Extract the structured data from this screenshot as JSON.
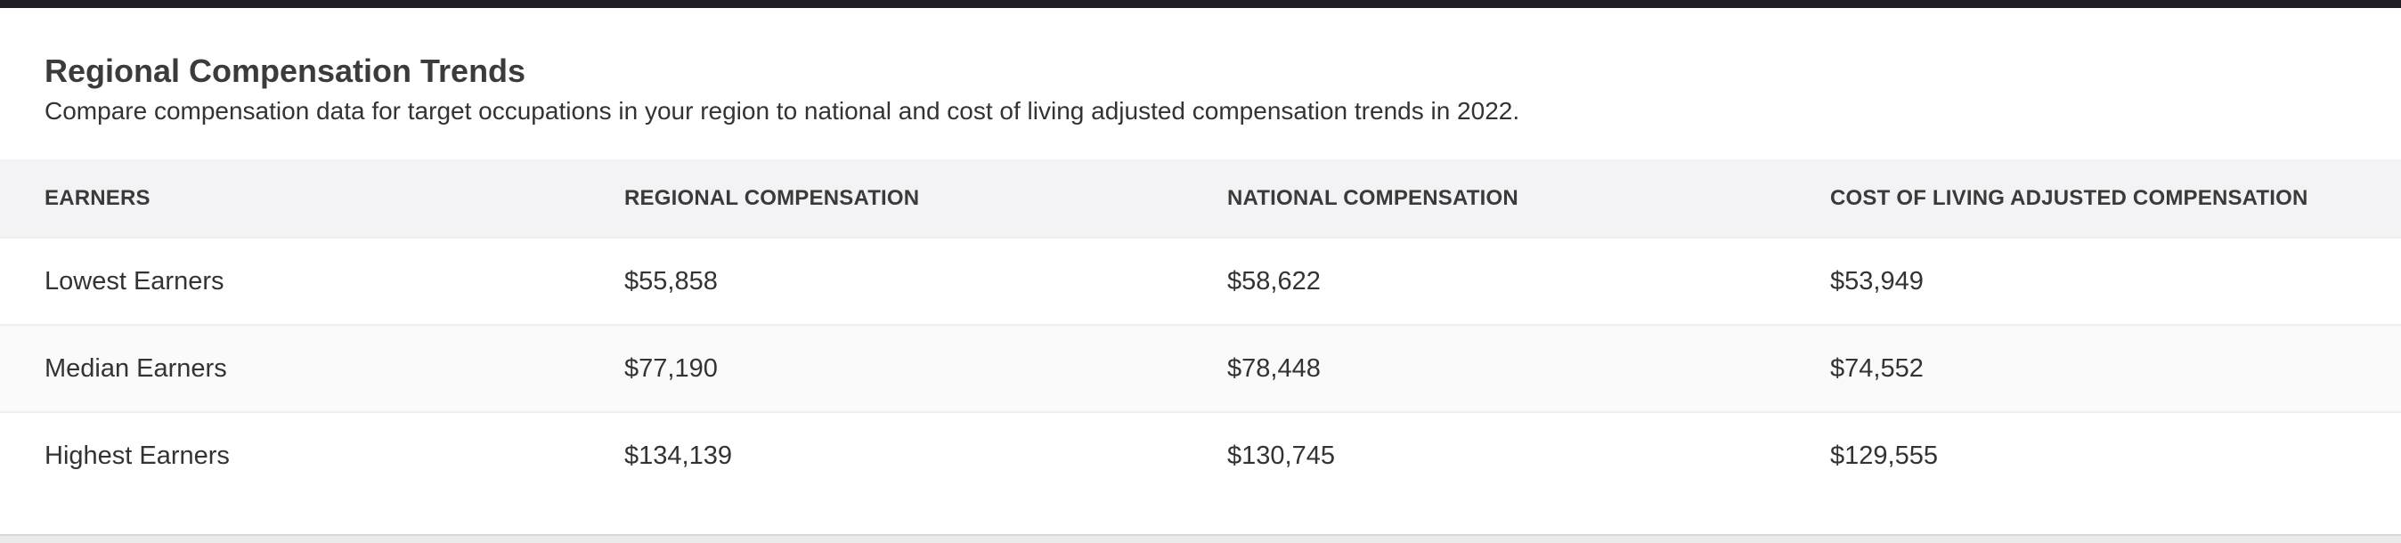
{
  "section": {
    "title": "Regional Compensation Trends",
    "subtitle": "Compare compensation data for target occupations in your region to national and cost of living adjusted compensation trends in 2022."
  },
  "table": {
    "headers": [
      "EARNERS",
      "REGIONAL COMPENSATION",
      "NATIONAL COMPENSATION",
      "COST OF LIVING ADJUSTED COMPENSATION"
    ],
    "rows": [
      [
        "Lowest Earners",
        "$55,858",
        "$58,622",
        "$53,949"
      ],
      [
        "Median Earners",
        "$77,190",
        "$78,448",
        "$74,552"
      ],
      [
        "Highest Earners",
        "$134,139",
        "$130,745",
        "$129,555"
      ]
    ]
  }
}
